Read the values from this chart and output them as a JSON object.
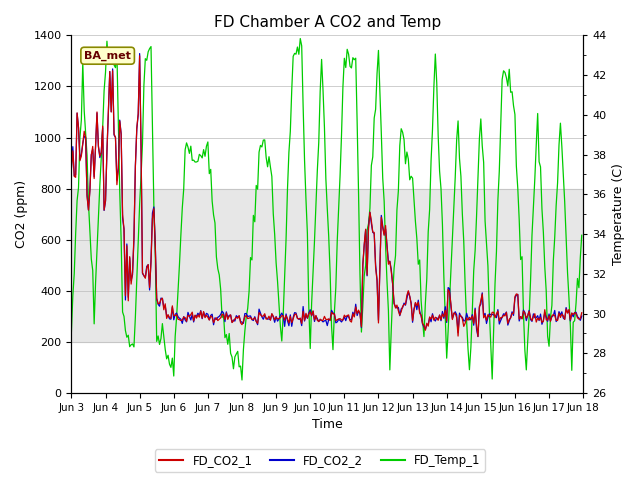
{
  "title": "FD Chamber A CO2 and Temp",
  "xlabel": "Time",
  "ylabel_left": "CO2 (ppm)",
  "ylabel_right": "Temperature (C)",
  "ylim_left": [
    0,
    1400
  ],
  "ylim_right": [
    26,
    44
  ],
  "xlim": [
    0,
    360
  ],
  "x_tick_labels": [
    "Jun 3",
    "Jun 4",
    "Jun 5",
    "Jun 6",
    "Jun 7",
    "Jun 8",
    "Jun 9",
    "Jun 10",
    "Jun 11",
    "Jun 12",
    "Jun 13",
    "Jun 14",
    "Jun 15",
    "Jun 16",
    "Jun 17",
    "Jun 18"
  ],
  "x_tick_positions": [
    0,
    24,
    48,
    72,
    96,
    120,
    144,
    168,
    192,
    216,
    240,
    264,
    288,
    312,
    336,
    360
  ],
  "color_co2_1": "#cc0000",
  "color_co2_2": "#0000cc",
  "color_temp": "#00cc00",
  "legend_labels": [
    "FD_CO2_1",
    "FD_CO2_2",
    "FD_Temp_1"
  ],
  "annotation_text": "BA_met",
  "shaded_band_bottom_co2": 200,
  "shaded_band_top_co2": 800,
  "shaded_color": "#d8d8d8",
  "shaded_alpha": 0.6,
  "background_color": "#ffffff",
  "yticks_left": [
    0,
    200,
    400,
    600,
    800,
    1000,
    1200,
    1400
  ],
  "yticks_right": [
    26,
    28,
    30,
    32,
    34,
    36,
    38,
    40,
    42,
    44
  ],
  "line_width": 0.9
}
